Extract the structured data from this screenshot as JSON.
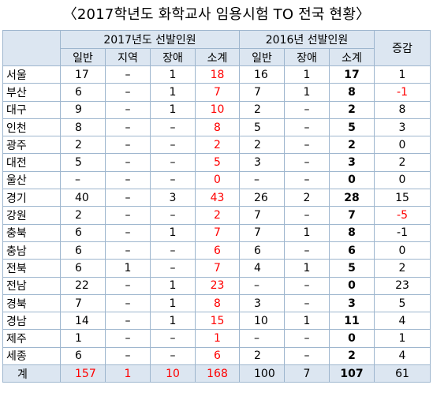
{
  "title": "〈2017학년도 화학교사 임용시험 TO 전국 현황〉",
  "headers": {
    "group2017": "2017년도 선발인원",
    "group2016": "2016년 선발인원",
    "change": "증감",
    "sub2017": [
      "일반",
      "지역",
      "장애",
      "소계"
    ],
    "sub2016": [
      "일반",
      "장애",
      "소계"
    ]
  },
  "rows": [
    {
      "region": "서울",
      "a": "17",
      "b": "–",
      "c": "1",
      "d": "18",
      "e": "16",
      "f": "1",
      "g": "17",
      "h": "1"
    },
    {
      "region": "부산",
      "a": "6",
      "b": "–",
      "c": "1",
      "d": "7",
      "e": "7",
      "f": "1",
      "g": "8",
      "h": "-1"
    },
    {
      "region": "대구",
      "a": "9",
      "b": "–",
      "c": "1",
      "d": "10",
      "e": "2",
      "f": "–",
      "g": "2",
      "h": "8"
    },
    {
      "region": "인천",
      "a": "8",
      "b": "–",
      "c": "–",
      "d": "8",
      "e": "5",
      "f": "–",
      "g": "5",
      "h": "3"
    },
    {
      "region": "광주",
      "a": "2",
      "b": "–",
      "c": "–",
      "d": "2",
      "e": "2",
      "f": "–",
      "g": "2",
      "h": "0"
    },
    {
      "region": "대전",
      "a": "5",
      "b": "–",
      "c": "–",
      "d": "5",
      "e": "3",
      "f": "–",
      "g": "3",
      "h": "2"
    },
    {
      "region": "울산",
      "a": "–",
      "b": "–",
      "c": "–",
      "d": "0",
      "e": "–",
      "f": "–",
      "g": "0",
      "h": "0"
    },
    {
      "region": "경기",
      "a": "40",
      "b": "–",
      "c": "3",
      "d": "43",
      "e": "26",
      "f": "2",
      "g": "28",
      "h": "15"
    },
    {
      "region": "강원",
      "a": "2",
      "b": "–",
      "c": "–",
      "d": "2",
      "e": "7",
      "f": "–",
      "g": "7",
      "h": "-5"
    },
    {
      "region": "충북",
      "a": "6",
      "b": "–",
      "c": "1",
      "d": "7",
      "e": "7",
      "f": "1",
      "g": "8",
      "h": "-1"
    },
    {
      "region": "충남",
      "a": "6",
      "b": "–",
      "c": "–",
      "d": "6",
      "e": "6",
      "f": "–",
      "g": "6",
      "h": "0"
    },
    {
      "region": "전북",
      "a": "6",
      "b": "1",
      "c": "–",
      "d": "7",
      "e": "4",
      "f": "1",
      "g": "5",
      "h": "2"
    },
    {
      "region": "전남",
      "a": "22",
      "b": "–",
      "c": "1",
      "d": "23",
      "e": "–",
      "f": "–",
      "g": "0",
      "h": "23"
    },
    {
      "region": "경북",
      "a": "7",
      "b": "–",
      "c": "1",
      "d": "8",
      "e": "3",
      "f": "–",
      "g": "3",
      "h": "5"
    },
    {
      "region": "경남",
      "a": "14",
      "b": "–",
      "c": "1",
      "d": "15",
      "e": "10",
      "f": "1",
      "g": "11",
      "h": "4"
    },
    {
      "region": "제주",
      "a": "1",
      "b": "–",
      "c": "–",
      "d": "1",
      "e": "–",
      "f": "–",
      "g": "0",
      "h": "1"
    },
    {
      "region": "세종",
      "a": "6",
      "b": "–",
      "c": "–",
      "d": "6",
      "e": "2",
      "f": "–",
      "g": "2",
      "h": "4"
    }
  ],
  "total": {
    "region": "계",
    "a": "157",
    "b": "1",
    "c": "10",
    "d": "168",
    "e": "100",
    "f": "7",
    "g": "107",
    "h": "61"
  },
  "colors": {
    "header_bg": "#dce6f1",
    "grid": "#9eb6ce",
    "highlight": "#ff0000"
  }
}
